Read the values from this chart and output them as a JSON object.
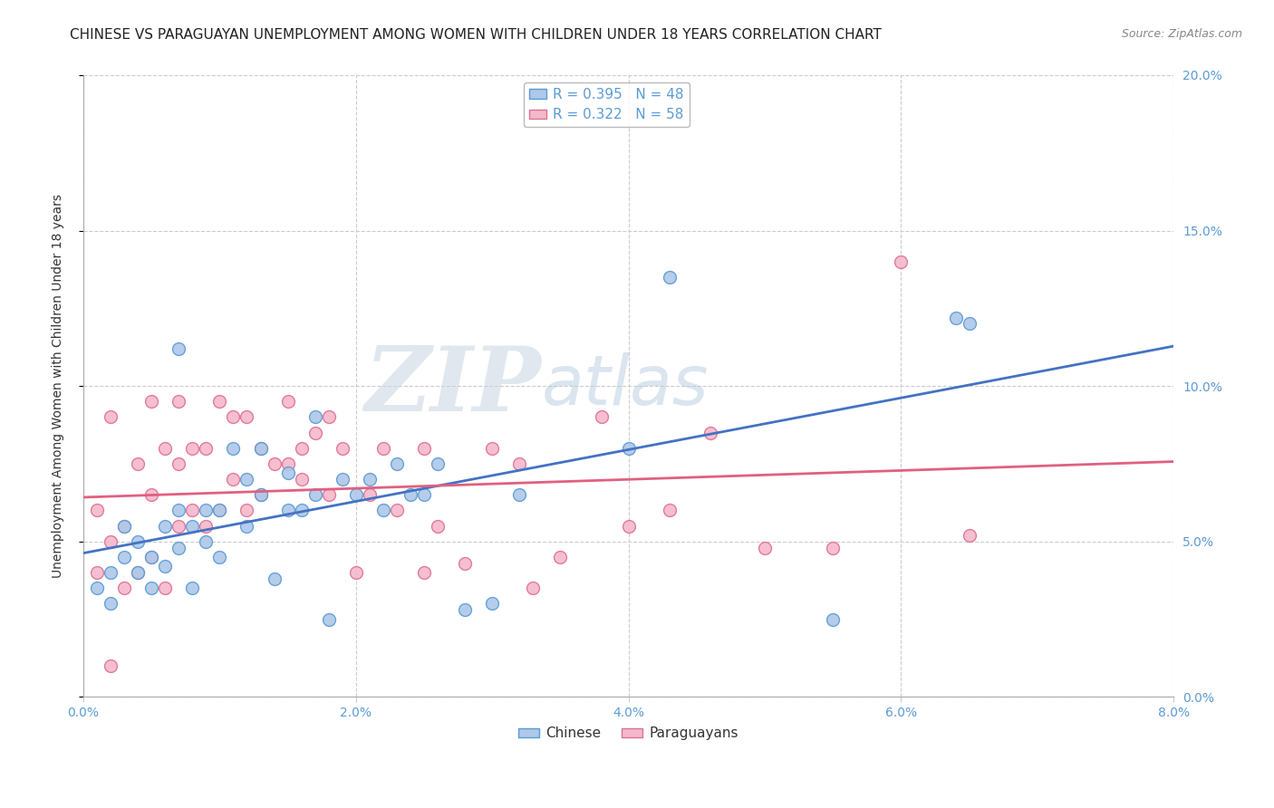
{
  "title": "CHINESE VS PARAGUAYAN UNEMPLOYMENT AMONG WOMEN WITH CHILDREN UNDER 18 YEARS CORRELATION CHART",
  "source": "Source: ZipAtlas.com",
  "ylabel": "Unemployment Among Women with Children Under 18 years",
  "xlim": [
    0.0,
    0.08
  ],
  "ylim": [
    0.0,
    0.2
  ],
  "xtick_values": [
    0.0,
    0.02,
    0.04,
    0.06,
    0.08
  ],
  "ytick_values": [
    0.0,
    0.05,
    0.1,
    0.15,
    0.2
  ],
  "chinese_color": "#adc8e8",
  "chinese_edge_color": "#5b9bd5",
  "paraguayan_color": "#f4b8cc",
  "paraguayan_edge_color": "#e07090",
  "chinese_line_color": "#4472c4",
  "paraguayan_line_color": "#e06080",
  "tick_color": "#5b9bd5",
  "chinese_R": 0.395,
  "chinese_N": 48,
  "paraguayan_R": 0.322,
  "paraguayan_N": 58,
  "marker_size": 100,
  "chinese_x": [
    0.001,
    0.002,
    0.002,
    0.003,
    0.003,
    0.004,
    0.004,
    0.005,
    0.005,
    0.006,
    0.006,
    0.007,
    0.007,
    0.007,
    0.008,
    0.008,
    0.009,
    0.009,
    0.01,
    0.01,
    0.011,
    0.012,
    0.012,
    0.013,
    0.013,
    0.014,
    0.015,
    0.015,
    0.016,
    0.017,
    0.017,
    0.018,
    0.019,
    0.02,
    0.021,
    0.022,
    0.023,
    0.024,
    0.025,
    0.026,
    0.028,
    0.03,
    0.032,
    0.04,
    0.043,
    0.055,
    0.064,
    0.065
  ],
  "chinese_y": [
    0.035,
    0.04,
    0.03,
    0.045,
    0.055,
    0.04,
    0.05,
    0.035,
    0.045,
    0.042,
    0.055,
    0.048,
    0.06,
    0.112,
    0.035,
    0.055,
    0.05,
    0.06,
    0.045,
    0.06,
    0.08,
    0.07,
    0.055,
    0.065,
    0.08,
    0.038,
    0.06,
    0.072,
    0.06,
    0.065,
    0.09,
    0.025,
    0.07,
    0.065,
    0.07,
    0.06,
    0.075,
    0.065,
    0.065,
    0.075,
    0.028,
    0.03,
    0.065,
    0.08,
    0.135,
    0.025,
    0.122,
    0.12
  ],
  "paraguayan_x": [
    0.001,
    0.001,
    0.002,
    0.002,
    0.003,
    0.003,
    0.004,
    0.004,
    0.005,
    0.005,
    0.005,
    0.006,
    0.006,
    0.007,
    0.007,
    0.007,
    0.008,
    0.008,
    0.009,
    0.009,
    0.01,
    0.01,
    0.011,
    0.011,
    0.012,
    0.012,
    0.013,
    0.013,
    0.014,
    0.015,
    0.015,
    0.016,
    0.016,
    0.017,
    0.018,
    0.018,
    0.019,
    0.02,
    0.021,
    0.022,
    0.023,
    0.025,
    0.025,
    0.026,
    0.028,
    0.03,
    0.032,
    0.033,
    0.035,
    0.038,
    0.04,
    0.043,
    0.046,
    0.05,
    0.055,
    0.06,
    0.065,
    0.002
  ],
  "paraguayan_y": [
    0.04,
    0.06,
    0.05,
    0.09,
    0.035,
    0.055,
    0.04,
    0.075,
    0.045,
    0.065,
    0.095,
    0.035,
    0.08,
    0.055,
    0.075,
    0.095,
    0.06,
    0.08,
    0.055,
    0.08,
    0.06,
    0.095,
    0.07,
    0.09,
    0.06,
    0.09,
    0.065,
    0.08,
    0.075,
    0.075,
    0.095,
    0.07,
    0.08,
    0.085,
    0.065,
    0.09,
    0.08,
    0.04,
    0.065,
    0.08,
    0.06,
    0.04,
    0.08,
    0.055,
    0.043,
    0.08,
    0.075,
    0.035,
    0.045,
    0.09,
    0.055,
    0.06,
    0.085,
    0.048,
    0.048,
    0.14,
    0.052,
    0.01
  ],
  "watermark_zip": "ZIP",
  "watermark_atlas": "atlas",
  "grid_color": "#cccccc",
  "background_color": "#ffffff",
  "title_fontsize": 11,
  "axis_label_fontsize": 10,
  "tick_fontsize": 10,
  "legend_fontsize": 11
}
